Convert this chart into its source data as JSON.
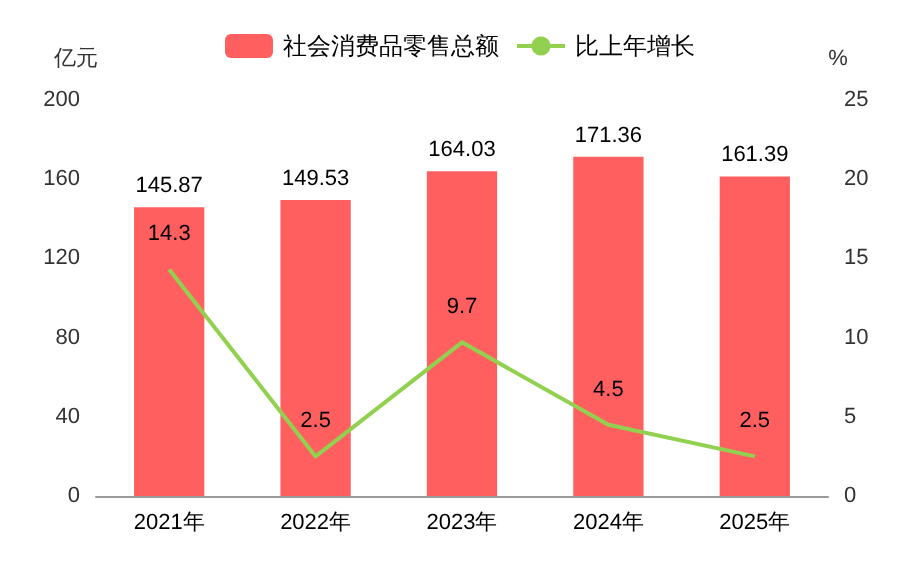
{
  "chart_data": {
    "type": "bar",
    "ylabel": "亿元",
    "y2label": "%",
    "categories": [
      "2021年",
      "2022年",
      "2023年",
      "2024年",
      "2025年"
    ],
    "series": [
      {
        "name": "社会消费品零售总额",
        "color": "#ff5f5f",
        "values": [
          145.87,
          149.53,
          164.03,
          171.36,
          161.39
        ]
      },
      {
        "name": "比上年增长",
        "type": "line",
        "axis": "y2",
        "color": "#92d050",
        "values": [
          14.3,
          2.5,
          9.7,
          4.5,
          2.5
        ]
      }
    ],
    "ylim": [
      0,
      200
    ],
    "yticks": [
      0,
      40,
      80,
      120,
      160,
      200
    ],
    "y2lim": [
      0,
      25
    ],
    "y2ticks": [
      0,
      5,
      10,
      15,
      20,
      25
    ],
    "data_labels": true,
    "legend": "top",
    "grid": false,
    "marker": "none",
    "line_style": "solid"
  }
}
